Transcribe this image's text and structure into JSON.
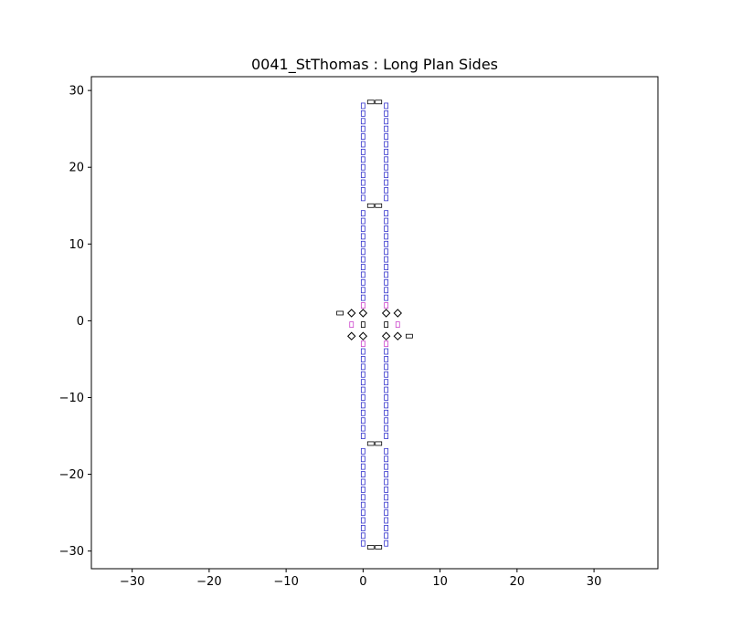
{
  "chart_data": {
    "type": "scatter",
    "title": "0041_StThomas : Long Plan Sides",
    "xlabel": "",
    "ylabel": "",
    "xlim": [
      -35.3,
      38.3
    ],
    "ylim": [
      -32.3,
      31.8
    ],
    "xticks": [
      -30,
      -20,
      -10,
      0,
      10,
      20,
      30
    ],
    "yticks": [
      -30,
      -20,
      -10,
      0,
      10,
      20,
      30
    ],
    "grid": false,
    "legend": false,
    "series": [
      {
        "color": "#3333cc",
        "marker": "small-rectangle",
        "points": [
          {
            "x": 0,
            "y": 28.0
          },
          {
            "x": 0,
            "y": 27.0
          },
          {
            "x": 0,
            "y": 26.0
          },
          {
            "x": 0,
            "y": 25.0
          },
          {
            "x": 0,
            "y": 24.0
          },
          {
            "x": 0,
            "y": 23.0
          },
          {
            "x": 0,
            "y": 22.0
          },
          {
            "x": 0,
            "y": 21.0
          },
          {
            "x": 0,
            "y": 20.0
          },
          {
            "x": 0,
            "y": 19.0
          },
          {
            "x": 0,
            "y": 18.0
          },
          {
            "x": 0,
            "y": 17.0
          },
          {
            "x": 0,
            "y": 16.0
          },
          {
            "x": 3,
            "y": 28.0
          },
          {
            "x": 3,
            "y": 27.0
          },
          {
            "x": 3,
            "y": 26.0
          },
          {
            "x": 3,
            "y": 25.0
          },
          {
            "x": 3,
            "y": 24.0
          },
          {
            "x": 3,
            "y": 23.0
          },
          {
            "x": 3,
            "y": 22.0
          },
          {
            "x": 3,
            "y": 21.0
          },
          {
            "x": 3,
            "y": 20.0
          },
          {
            "x": 3,
            "y": 19.0
          },
          {
            "x": 3,
            "y": 18.0
          },
          {
            "x": 3,
            "y": 17.0
          },
          {
            "x": 3,
            "y": 16.0
          },
          {
            "x": 0,
            "y": 14.0
          },
          {
            "x": 0,
            "y": 13.0
          },
          {
            "x": 0,
            "y": 12.0
          },
          {
            "x": 0,
            "y": 11.0
          },
          {
            "x": 0,
            "y": 10.0
          },
          {
            "x": 0,
            "y": 9.0
          },
          {
            "x": 0,
            "y": 8.0
          },
          {
            "x": 0,
            "y": 7.0
          },
          {
            "x": 0,
            "y": 6.0
          },
          {
            "x": 0,
            "y": 5.0
          },
          {
            "x": 0,
            "y": 4.0
          },
          {
            "x": 0,
            "y": 3.0
          },
          {
            "x": 3,
            "y": 14.0
          },
          {
            "x": 3,
            "y": 13.0
          },
          {
            "x": 3,
            "y": 12.0
          },
          {
            "x": 3,
            "y": 11.0
          },
          {
            "x": 3,
            "y": 10.0
          },
          {
            "x": 3,
            "y": 9.0
          },
          {
            "x": 3,
            "y": 8.0
          },
          {
            "x": 3,
            "y": 7.0
          },
          {
            "x": 3,
            "y": 6.0
          },
          {
            "x": 3,
            "y": 5.0
          },
          {
            "x": 3,
            "y": 4.0
          },
          {
            "x": 3,
            "y": 3.0
          },
          {
            "x": 0,
            "y": -4.0
          },
          {
            "x": 0,
            "y": -5.0
          },
          {
            "x": 0,
            "y": -6.0
          },
          {
            "x": 0,
            "y": -7.0
          },
          {
            "x": 0,
            "y": -8.0
          },
          {
            "x": 0,
            "y": -9.0
          },
          {
            "x": 0,
            "y": -10.0
          },
          {
            "x": 0,
            "y": -11.0
          },
          {
            "x": 0,
            "y": -12.0
          },
          {
            "x": 0,
            "y": -13.0
          },
          {
            "x": 0,
            "y": -14.0
          },
          {
            "x": 0,
            "y": -15.0
          },
          {
            "x": 3,
            "y": -4.0
          },
          {
            "x": 3,
            "y": -5.0
          },
          {
            "x": 3,
            "y": -6.0
          },
          {
            "x": 3,
            "y": -7.0
          },
          {
            "x": 3,
            "y": -8.0
          },
          {
            "x": 3,
            "y": -9.0
          },
          {
            "x": 3,
            "y": -10.0
          },
          {
            "x": 3,
            "y": -11.0
          },
          {
            "x": 3,
            "y": -12.0
          },
          {
            "x": 3,
            "y": -13.0
          },
          {
            "x": 3,
            "y": -14.0
          },
          {
            "x": 3,
            "y": -15.0
          },
          {
            "x": 0,
            "y": -17.0
          },
          {
            "x": 0,
            "y": -18.0
          },
          {
            "x": 0,
            "y": -19.0
          },
          {
            "x": 0,
            "y": -20.0
          },
          {
            "x": 0,
            "y": -21.0
          },
          {
            "x": 0,
            "y": -22.0
          },
          {
            "x": 0,
            "y": -23.0
          },
          {
            "x": 0,
            "y": -24.0
          },
          {
            "x": 0,
            "y": -25.0
          },
          {
            "x": 0,
            "y": -26.0
          },
          {
            "x": 0,
            "y": -27.0
          },
          {
            "x": 0,
            "y": -28.0
          },
          {
            "x": 0,
            "y": -29.0
          },
          {
            "x": 3,
            "y": -17.0
          },
          {
            "x": 3,
            "y": -18.0
          },
          {
            "x": 3,
            "y": -19.0
          },
          {
            "x": 3,
            "y": -20.0
          },
          {
            "x": 3,
            "y": -21.0
          },
          {
            "x": 3,
            "y": -22.0
          },
          {
            "x": 3,
            "y": -23.0
          },
          {
            "x": 3,
            "y": -24.0
          },
          {
            "x": 3,
            "y": -25.0
          },
          {
            "x": 3,
            "y": -26.0
          },
          {
            "x": 3,
            "y": -27.0
          },
          {
            "x": 3,
            "y": -28.0
          },
          {
            "x": 3,
            "y": -29.0
          }
        ]
      },
      {
        "color": "#cc44cc",
        "marker": "small-rectangle",
        "points": [
          {
            "x": 0,
            "y": 2.0
          },
          {
            "x": 3,
            "y": 2.0
          },
          {
            "x": 0,
            "y": -3.0
          },
          {
            "x": 3,
            "y": -3.0
          },
          {
            "x": -1.5,
            "y": -0.5
          },
          {
            "x": 4.5,
            "y": -0.5
          }
        ]
      },
      {
        "color": "#000000",
        "marker": "wide-rectangle",
        "points": [
          {
            "x": 1,
            "y": 28.5
          },
          {
            "x": 2,
            "y": 28.5
          },
          {
            "x": 1,
            "y": 15.0
          },
          {
            "x": 2,
            "y": 15.0
          },
          {
            "x": 1,
            "y": -16.0
          },
          {
            "x": 2,
            "y": -16.0
          },
          {
            "x": 1,
            "y": -29.5
          },
          {
            "x": 2,
            "y": -29.5
          },
          {
            "x": -3,
            "y": 1.0
          },
          {
            "x": 6,
            "y": -2.0
          }
        ]
      },
      {
        "color": "#000000",
        "marker": "diamond",
        "points": [
          {
            "x": -1.5,
            "y": 1.0
          },
          {
            "x": 0,
            "y": 1.0
          },
          {
            "x": 3,
            "y": 1.0
          },
          {
            "x": 4.5,
            "y": 1.0
          },
          {
            "x": -1.5,
            "y": -2.0
          },
          {
            "x": 0,
            "y": -2.0
          },
          {
            "x": 3,
            "y": -2.0
          },
          {
            "x": 4.5,
            "y": -2.0
          }
        ]
      },
      {
        "color": "#000000",
        "marker": "small-rectangle",
        "points": [
          {
            "x": 0,
            "y": -0.5
          },
          {
            "x": 3,
            "y": -0.5
          }
        ]
      }
    ]
  }
}
